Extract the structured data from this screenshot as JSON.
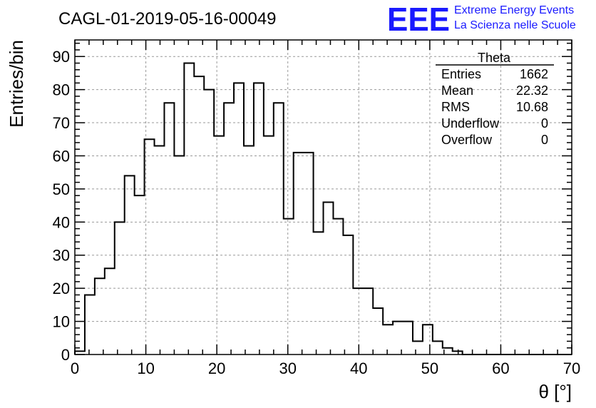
{
  "chart_data": {
    "type": "bar",
    "title": "CAGL-01-2019-05-16-00049",
    "xlabel": "θ [°]",
    "ylabel": "Entries/bin",
    "xlim": [
      0,
      70
    ],
    "ylim": [
      0,
      95
    ],
    "grid": true,
    "bin_width": 1.4,
    "x_ticks": [
      "0",
      "10",
      "20",
      "30",
      "40",
      "50",
      "60",
      "70"
    ],
    "y_ticks": [
      "0",
      "10",
      "20",
      "30",
      "40",
      "50",
      "60",
      "70",
      "80",
      "90"
    ],
    "values": [
      1,
      18,
      23,
      26,
      40,
      54,
      48,
      65,
      63,
      76,
      60,
      88,
      84,
      80,
      66,
      76,
      82,
      63,
      82,
      66,
      76,
      41,
      61,
      61,
      37,
      46,
      41,
      36,
      20,
      20,
      14,
      9,
      10,
      10,
      4,
      9,
      4,
      2,
      1,
      0,
      0,
      0,
      0,
      0,
      0,
      0,
      0,
      0,
      0,
      0
    ],
    "legend": {
      "position": "top-right",
      "title": "Theta",
      "rows": [
        {
          "label": "Entries",
          "value": "1662"
        },
        {
          "label": "Mean",
          "value": "22.32"
        },
        {
          "label": "RMS",
          "value": "10.68"
        },
        {
          "label": "Underflow",
          "value": "0"
        },
        {
          "label": "Overflow",
          "value": "0"
        }
      ]
    }
  },
  "logo": {
    "mark": "EEE",
    "line1": "Extreme Energy Events",
    "line2": "La Scienza nelle Scuole",
    "color": "#1a1aff"
  },
  "colors": {
    "line": "#000000",
    "grid": "#999999"
  }
}
